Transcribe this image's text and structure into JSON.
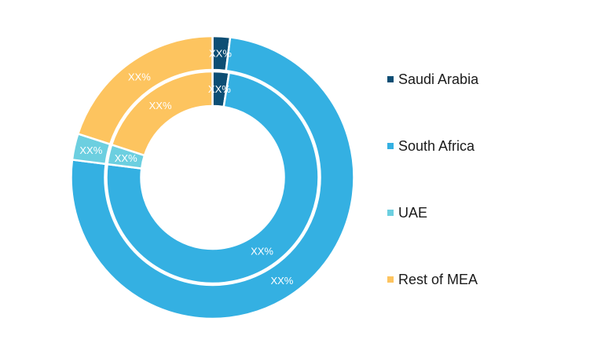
{
  "chart_data": {
    "type": "pie",
    "subtype": "double-donut",
    "categories": [
      "Saudi Arabia",
      "South Africa",
      "UAE",
      "Rest of MEA"
    ],
    "colors": [
      "#0d4e74",
      "#34b0e2",
      "#6ccfe0",
      "#fdc45f"
    ],
    "series": [
      {
        "values": [
          2.0,
          75.0,
          3.0,
          20.0
        ],
        "labels": [
          "XX%",
          "XX%",
          "XX%",
          "XX%"
        ]
      },
      {
        "values": [
          2.5,
          74.5,
          3.0,
          20.0
        ],
        "labels": [
          "XX%",
          "XX%",
          "XX%",
          "XX%"
        ]
      }
    ],
    "legend_position": "right",
    "label_color": "#ffffff"
  }
}
